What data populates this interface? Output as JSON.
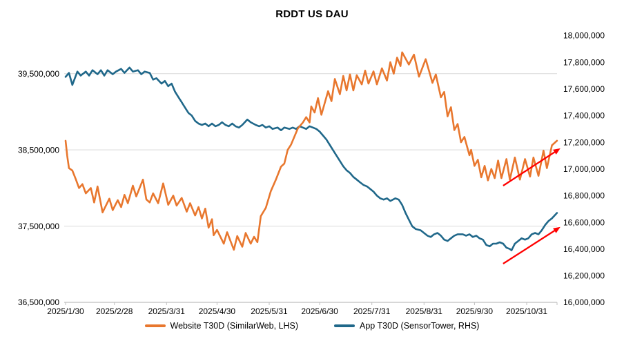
{
  "title": "RDDT US DAU",
  "legend": [
    {
      "label": "Website T30D (SimilarWeb, LHS)"
    },
    {
      "label": "App T30D (SensorTower, RHS)"
    }
  ],
  "chart_data": {
    "type": "line",
    "title": "RDDT US DAU",
    "grid": "horizontal-only",
    "legend_position": "bottom-center",
    "colors": {
      "gridline": "#D9D9D9",
      "axis": "#BFBFBF",
      "text": "#000000",
      "background": "#FFFFFF"
    },
    "x_axis": {
      "unit": "days since 2025-01-30",
      "tick_labels": [
        "2025/1/30",
        "2025/2/28",
        "2025/3/31",
        "2025/4/30",
        "2025/5/31",
        "2025/6/30",
        "2025/7/31",
        "2025/8/31",
        "2025/9/30",
        "2025/10/31"
      ],
      "tick_days": [
        0,
        29,
        60,
        90,
        121,
        151,
        182,
        213,
        243,
        274
      ],
      "range_days": [
        0,
        292
      ]
    },
    "y_left_axis": {
      "min": 36500000,
      "max": 40000000,
      "tick_values": [
        39500000,
        38500000,
        37500000,
        36500000
      ],
      "tick_labels": [
        "39,500,000",
        "38,500,000",
        "37,500,000",
        "36,500,000"
      ],
      "gridline_values": [
        39500000,
        38500000,
        37500000
      ]
    },
    "y_right_axis": {
      "min": 16000000,
      "max": 18000000,
      "tick_values": [
        18000000,
        17800000,
        17600000,
        17400000,
        17200000,
        17000000,
        16800000,
        16600000,
        16400000,
        16200000,
        16000000
      ],
      "tick_labels": [
        "18,000,000",
        "17,800,000",
        "17,600,000",
        "17,400,000",
        "17,200,000",
        "17,000,000",
        "16,800,000",
        "16,600,000",
        "16,400,000",
        "16,200,000",
        "16,000,000"
      ]
    },
    "series": [
      {
        "name": "Website T30D (SimilarWeb, LHS)",
        "axis": "left",
        "color": "#E8772E",
        "points": [
          [
            0,
            38620000
          ],
          [
            1,
            38420000
          ],
          [
            2,
            38260000
          ],
          [
            4,
            38230000
          ],
          [
            6,
            38120000
          ],
          [
            8,
            38000000
          ],
          [
            10,
            38050000
          ],
          [
            12,
            37930000
          ],
          [
            15,
            38000000
          ],
          [
            17,
            37810000
          ],
          [
            19,
            38020000
          ],
          [
            22,
            37680000
          ],
          [
            26,
            37860000
          ],
          [
            28,
            37710000
          ],
          [
            31,
            37840000
          ],
          [
            33,
            37750000
          ],
          [
            35,
            37910000
          ],
          [
            37,
            37800000
          ],
          [
            40,
            38030000
          ],
          [
            42,
            37890000
          ],
          [
            46,
            38110000
          ],
          [
            48,
            37850000
          ],
          [
            50,
            37810000
          ],
          [
            52,
            37930000
          ],
          [
            55,
            37800000
          ],
          [
            58,
            38060000
          ],
          [
            61,
            37780000
          ],
          [
            64,
            37900000
          ],
          [
            66,
            37770000
          ],
          [
            69,
            37870000
          ],
          [
            72,
            37690000
          ],
          [
            74,
            37800000
          ],
          [
            77,
            37640000
          ],
          [
            79,
            37750000
          ],
          [
            81,
            37600000
          ],
          [
            83,
            37730000
          ],
          [
            85,
            37480000
          ],
          [
            87,
            37590000
          ],
          [
            88,
            37380000
          ],
          [
            90,
            37450000
          ],
          [
            94,
            37270000
          ],
          [
            96,
            37420000
          ],
          [
            100,
            37190000
          ],
          [
            102,
            37370000
          ],
          [
            105,
            37230000
          ],
          [
            107,
            37410000
          ],
          [
            110,
            37270000
          ],
          [
            112,
            37360000
          ],
          [
            114,
            37290000
          ],
          [
            116,
            37630000
          ],
          [
            119,
            37740000
          ],
          [
            122,
            37960000
          ],
          [
            125,
            38110000
          ],
          [
            128,
            38280000
          ],
          [
            130,
            38320000
          ],
          [
            132,
            38500000
          ],
          [
            134,
            38570000
          ],
          [
            138,
            38780000
          ],
          [
            141,
            38860000
          ],
          [
            143,
            38930000
          ],
          [
            145,
            38860000
          ],
          [
            146,
            39070000
          ],
          [
            148,
            38990000
          ],
          [
            150,
            39180000
          ],
          [
            152,
            38960000
          ],
          [
            156,
            39270000
          ],
          [
            158,
            39140000
          ],
          [
            160,
            39430000
          ],
          [
            163,
            39230000
          ],
          [
            165,
            39470000
          ],
          [
            167,
            39280000
          ],
          [
            169,
            39490000
          ],
          [
            171,
            39280000
          ],
          [
            173,
            39480000
          ],
          [
            176,
            39360000
          ],
          [
            178,
            39540000
          ],
          [
            180,
            39370000
          ],
          [
            183,
            39530000
          ],
          [
            185,
            39360000
          ],
          [
            188,
            39570000
          ],
          [
            191,
            39410000
          ],
          [
            193,
            39650000
          ],
          [
            195,
            39500000
          ],
          [
            197,
            39710000
          ],
          [
            199,
            39600000
          ],
          [
            200,
            39780000
          ],
          [
            204,
            39620000
          ],
          [
            207,
            39750000
          ],
          [
            210,
            39460000
          ],
          [
            214,
            39690000
          ],
          [
            218,
            39380000
          ],
          [
            220,
            39490000
          ],
          [
            223,
            39190000
          ],
          [
            225,
            39260000
          ],
          [
            227,
            38940000
          ],
          [
            229,
            39060000
          ],
          [
            231,
            38760000
          ],
          [
            233,
            38840000
          ],
          [
            235,
            38600000
          ],
          [
            237,
            38670000
          ],
          [
            240,
            38430000
          ],
          [
            241,
            38500000
          ],
          [
            243,
            38290000
          ],
          [
            245,
            38370000
          ],
          [
            247,
            38140000
          ],
          [
            249,
            38290000
          ],
          [
            251,
            38100000
          ],
          [
            253,
            38250000
          ],
          [
            255,
            38130000
          ],
          [
            257,
            38360000
          ],
          [
            259,
            38130000
          ],
          [
            262,
            38380000
          ],
          [
            264,
            38110000
          ],
          [
            267,
            38400000
          ],
          [
            270,
            38110000
          ],
          [
            273,
            38380000
          ],
          [
            276,
            38150000
          ],
          [
            278,
            38400000
          ],
          [
            281,
            38160000
          ],
          [
            284,
            38490000
          ],
          [
            286,
            38260000
          ],
          [
            289,
            38560000
          ],
          [
            292,
            38620000
          ]
        ]
      },
      {
        "name": "App T30D (SensorTower, RHS)",
        "axis": "right",
        "color": "#20688A",
        "points": [
          [
            0,
            17690000
          ],
          [
            2,
            17720000
          ],
          [
            4,
            17630000
          ],
          [
            7,
            17730000
          ],
          [
            9,
            17700000
          ],
          [
            12,
            17730000
          ],
          [
            14,
            17700000
          ],
          [
            16,
            17740000
          ],
          [
            19,
            17710000
          ],
          [
            21,
            17740000
          ],
          [
            23,
            17700000
          ],
          [
            25,
            17740000
          ],
          [
            28,
            17710000
          ],
          [
            30,
            17730000
          ],
          [
            33,
            17750000
          ],
          [
            35,
            17720000
          ],
          [
            38,
            17760000
          ],
          [
            40,
            17730000
          ],
          [
            43,
            17740000
          ],
          [
            45,
            17710000
          ],
          [
            47,
            17730000
          ],
          [
            50,
            17720000
          ],
          [
            52,
            17670000
          ],
          [
            54,
            17680000
          ],
          [
            57,
            17640000
          ],
          [
            59,
            17660000
          ],
          [
            61,
            17620000
          ],
          [
            63,
            17640000
          ],
          [
            65,
            17580000
          ],
          [
            67,
            17540000
          ],
          [
            69,
            17500000
          ],
          [
            71,
            17460000
          ],
          [
            73,
            17420000
          ],
          [
            75,
            17400000
          ],
          [
            77,
            17360000
          ],
          [
            79,
            17340000
          ],
          [
            81,
            17330000
          ],
          [
            83,
            17340000
          ],
          [
            85,
            17320000
          ],
          [
            87,
            17340000
          ],
          [
            89,
            17320000
          ],
          [
            91,
            17330000
          ],
          [
            93,
            17350000
          ],
          [
            95,
            17330000
          ],
          [
            97,
            17320000
          ],
          [
            99,
            17340000
          ],
          [
            101,
            17320000
          ],
          [
            103,
            17310000
          ],
          [
            105,
            17330000
          ],
          [
            108,
            17370000
          ],
          [
            110,
            17350000
          ],
          [
            113,
            17330000
          ],
          [
            115,
            17320000
          ],
          [
            117,
            17330000
          ],
          [
            119,
            17310000
          ],
          [
            121,
            17320000
          ],
          [
            123,
            17300000
          ],
          [
            126,
            17310000
          ],
          [
            128,
            17290000
          ],
          [
            130,
            17310000
          ],
          [
            133,
            17300000
          ],
          [
            135,
            17310000
          ],
          [
            137,
            17300000
          ],
          [
            139,
            17320000
          ],
          [
            141,
            17310000
          ],
          [
            143,
            17300000
          ],
          [
            145,
            17320000
          ],
          [
            147,
            17310000
          ],
          [
            149,
            17300000
          ],
          [
            151,
            17280000
          ],
          [
            153,
            17250000
          ],
          [
            155,
            17220000
          ],
          [
            157,
            17180000
          ],
          [
            159,
            17140000
          ],
          [
            161,
            17100000
          ],
          [
            163,
            17060000
          ],
          [
            165,
            17020000
          ],
          [
            167,
            16990000
          ],
          [
            169,
            16970000
          ],
          [
            171,
            16940000
          ],
          [
            173,
            16920000
          ],
          [
            175,
            16900000
          ],
          [
            177,
            16880000
          ],
          [
            179,
            16870000
          ],
          [
            181,
            16850000
          ],
          [
            183,
            16830000
          ],
          [
            185,
            16800000
          ],
          [
            187,
            16780000
          ],
          [
            189,
            16770000
          ],
          [
            191,
            16780000
          ],
          [
            193,
            16760000
          ],
          [
            196,
            16780000
          ],
          [
            198,
            16770000
          ],
          [
            200,
            16730000
          ],
          [
            202,
            16670000
          ],
          [
            204,
            16620000
          ],
          [
            206,
            16570000
          ],
          [
            208,
            16550000
          ],
          [
            211,
            16540000
          ],
          [
            213,
            16520000
          ],
          [
            215,
            16500000
          ],
          [
            217,
            16490000
          ],
          [
            219,
            16510000
          ],
          [
            221,
            16520000
          ],
          [
            223,
            16500000
          ],
          [
            225,
            16470000
          ],
          [
            227,
            16460000
          ],
          [
            229,
            16480000
          ],
          [
            231,
            16500000
          ],
          [
            233,
            16510000
          ],
          [
            236,
            16510000
          ],
          [
            238,
            16500000
          ],
          [
            240,
            16510000
          ],
          [
            242,
            16490000
          ],
          [
            244,
            16500000
          ],
          [
            246,
            16480000
          ],
          [
            248,
            16470000
          ],
          [
            250,
            16430000
          ],
          [
            252,
            16420000
          ],
          [
            254,
            16440000
          ],
          [
            256,
            16440000
          ],
          [
            258,
            16450000
          ],
          [
            260,
            16440000
          ],
          [
            262,
            16410000
          ],
          [
            264,
            16400000
          ],
          [
            265,
            16390000
          ],
          [
            267,
            16440000
          ],
          [
            269,
            16460000
          ],
          [
            271,
            16480000
          ],
          [
            273,
            16470000
          ],
          [
            275,
            16480000
          ],
          [
            277,
            16510000
          ],
          [
            279,
            16520000
          ],
          [
            281,
            16510000
          ],
          [
            283,
            16540000
          ],
          [
            285,
            16580000
          ],
          [
            287,
            16610000
          ],
          [
            289,
            16630000
          ],
          [
            292,
            16670000
          ]
        ]
      }
    ],
    "annotations": [
      {
        "type": "arrow",
        "name": "website-uptrend-arrow",
        "color": "#FF0000",
        "axis": "left",
        "from": [
          260,
          38030000
        ],
        "to": [
          294,
          38520000
        ]
      },
      {
        "type": "arrow",
        "name": "app-uptrend-arrow",
        "color": "#FF0000",
        "axis": "right",
        "from": [
          260,
          16290000
        ],
        "to": [
          294,
          16565000
        ]
      }
    ]
  }
}
